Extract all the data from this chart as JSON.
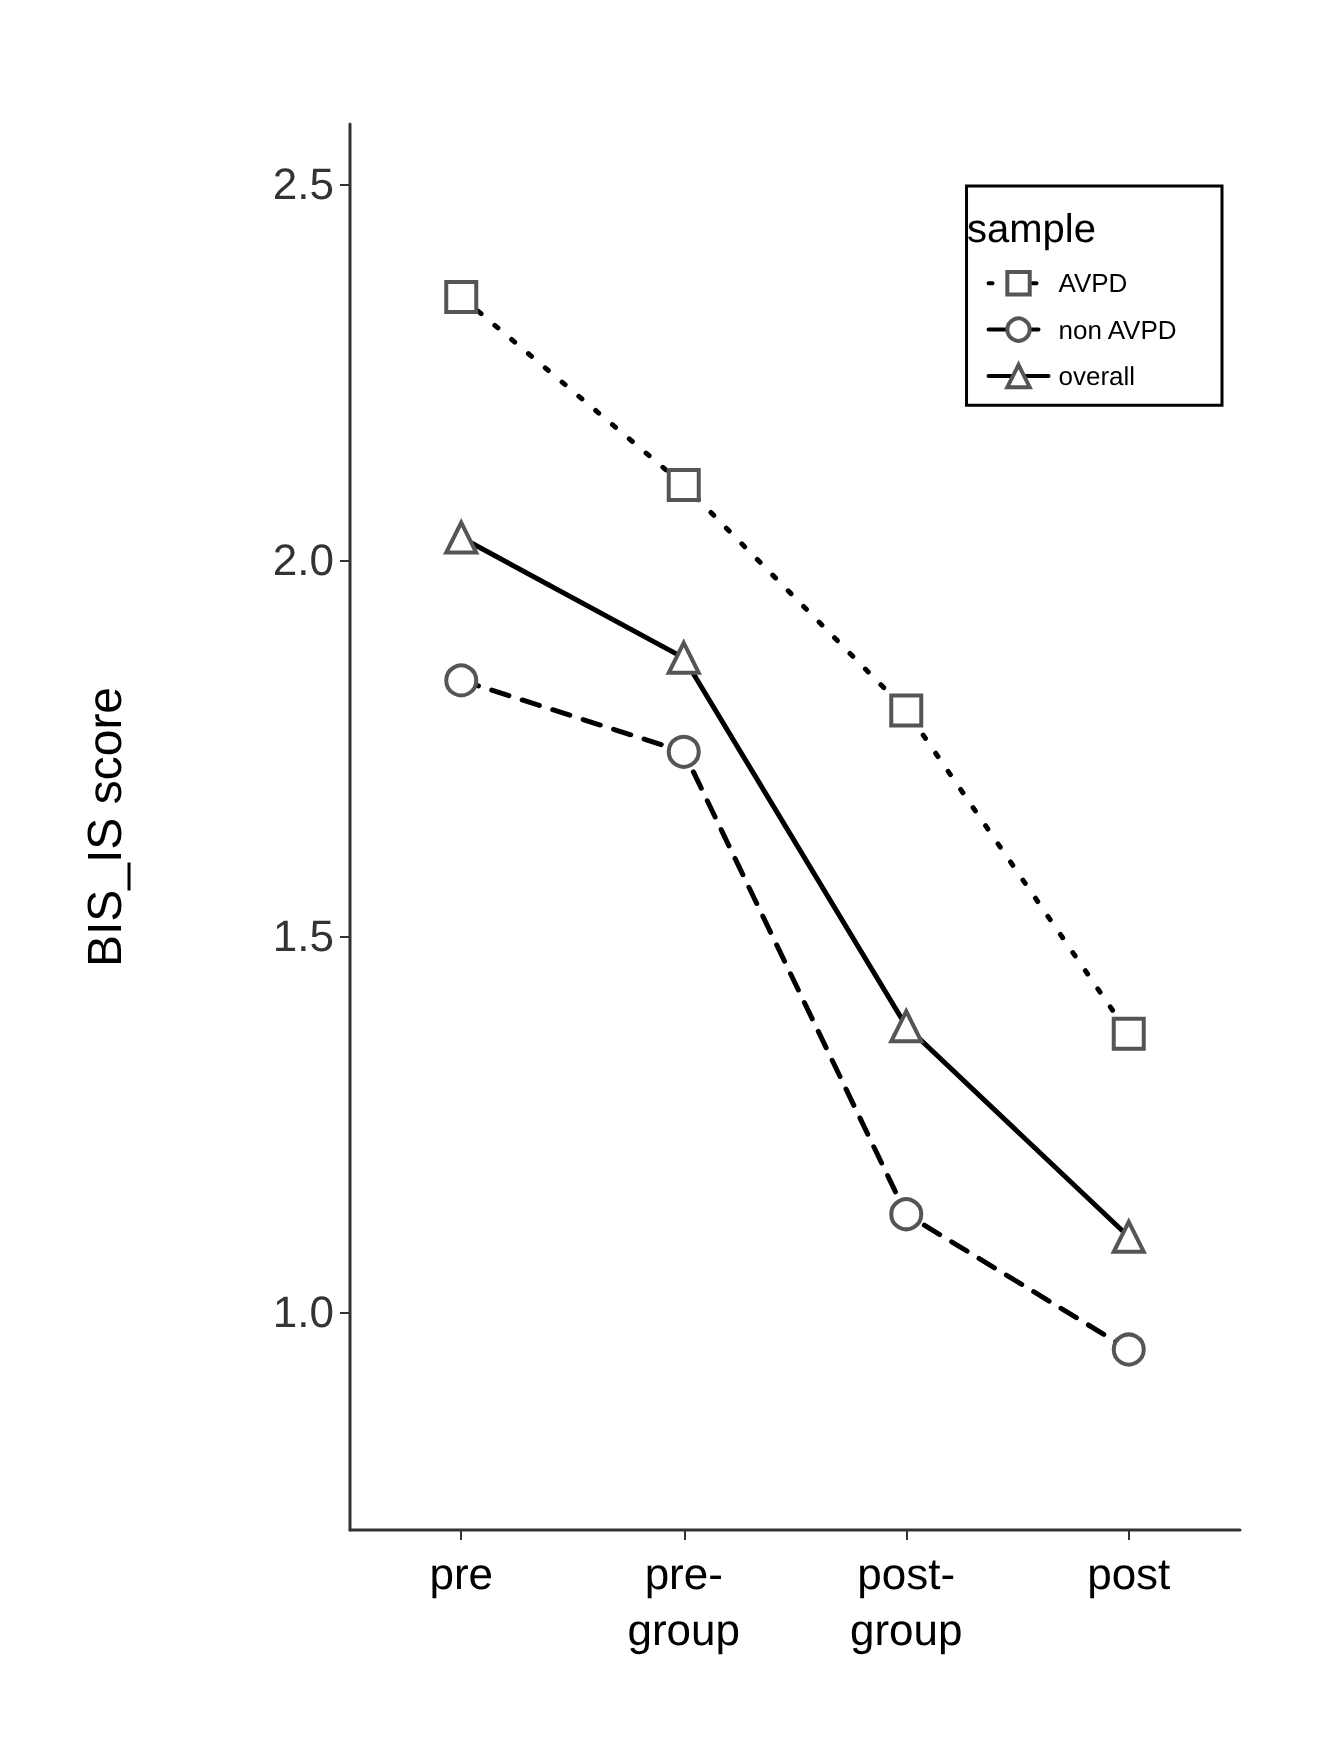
{
  "chart_data": {
    "type": "line",
    "ylabel": "BIS_IS score",
    "legend_title": "sample",
    "legend": "top right",
    "grid": false,
    "categories": [
      "pre",
      "pre-\ngroup",
      "post-\ngroup",
      "post"
    ],
    "ylim": [
      0.71,
      2.58
    ],
    "yticks": [
      {
        "value": 1,
        "label": "1.0"
      },
      {
        "value": 1.5,
        "label": "1.5"
      },
      {
        "value": 2,
        "label": "2.0"
      },
      {
        "value": 2.5,
        "label": "2.5"
      }
    ],
    "series": [
      {
        "name": "AVPD",
        "color": "#000000",
        "marker": "square",
        "line_style": "dotted",
        "values": [
          2.35,
          2.1,
          1.8,
          1.37
        ]
      },
      {
        "name": "non AVPD",
        "color": "#000000",
        "marker": "circle",
        "line_style": "dashed",
        "values": [
          1.84,
          1.745,
          1.13,
          0.95
        ]
      },
      {
        "name": "overall",
        "color": "#000000",
        "marker": "triangle",
        "line_style": "solid",
        "values": [
          2.03,
          1.87,
          1.38,
          1.1
        ]
      }
    ]
  }
}
